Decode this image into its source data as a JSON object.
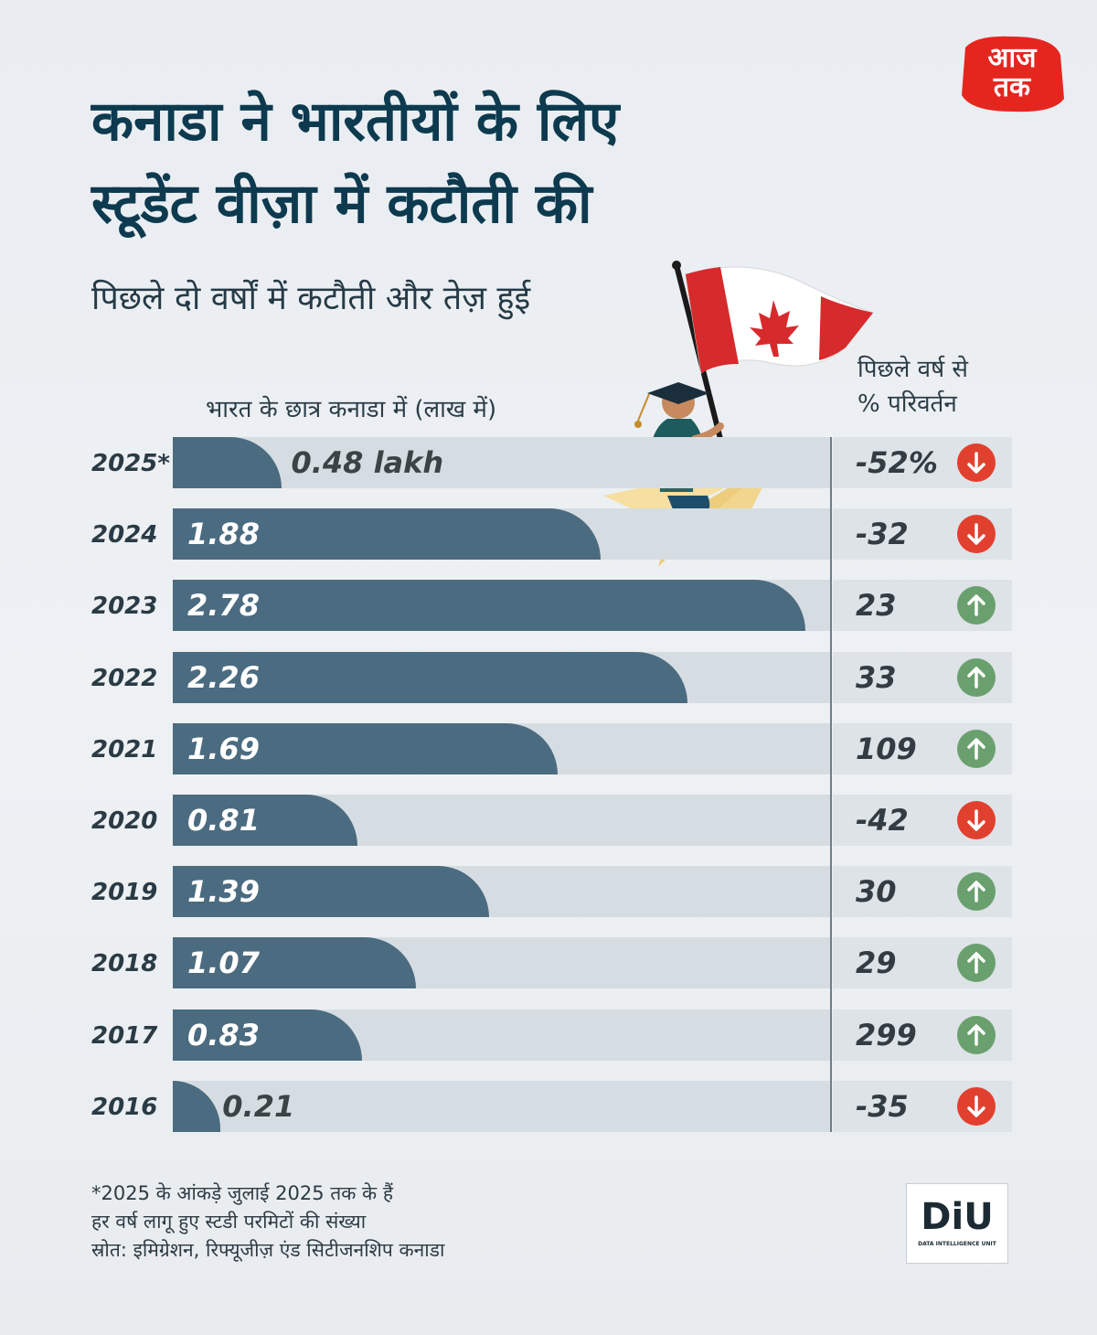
{
  "title_line1": "कनाडा ने भारतीयों के लिए",
  "title_line2": "स्टूडेंट वीज़ा में कटौती की",
  "subtitle": "पिछले दो वर्षों में कटौती और तेज़ हुई",
  "logo": {
    "line1": "आज",
    "line2": "तक",
    "color": "#e5261f"
  },
  "colors": {
    "bar": "#4b6b80",
    "track": "#d6dde2",
    "up": "#6aa06e",
    "down": "#e2402f"
  },
  "chart_data": {
    "type": "bar",
    "orientation": "horizontal",
    "xlabel": "भारत के छात्र कनाडा में (लाख में)",
    "change_header_line1": "पिछले वर्ष से",
    "change_header_line2": "% परिवर्तन",
    "xlim": [
      0,
      2.78
    ],
    "rows": [
      {
        "year": "2025*",
        "value": 0.48,
        "label": "0.48 lakh",
        "change": -52,
        "change_label": "-52%"
      },
      {
        "year": "2024",
        "value": 1.88,
        "label": "1.88",
        "change": -32,
        "change_label": "-32"
      },
      {
        "year": "2023",
        "value": 2.78,
        "label": "2.78",
        "change": 23,
        "change_label": "23"
      },
      {
        "year": "2022",
        "value": 2.26,
        "label": "2.26",
        "change": 33,
        "change_label": "33"
      },
      {
        "year": "2021",
        "value": 1.69,
        "label": "1.69",
        "change": 109,
        "change_label": "109"
      },
      {
        "year": "2020",
        "value": 0.81,
        "label": "0.81",
        "change": -42,
        "change_label": "-42"
      },
      {
        "year": "2019",
        "value": 1.39,
        "label": "1.39",
        "change": 30,
        "change_label": "30"
      },
      {
        "year": "2018",
        "value": 1.07,
        "label": "1.07",
        "change": 29,
        "change_label": "29"
      },
      {
        "year": "2017",
        "value": 0.83,
        "label": "0.83",
        "change": 299,
        "change_label": "299"
      },
      {
        "year": "2016",
        "value": 0.21,
        "label": "0.21",
        "change": -35,
        "change_label": "-35"
      }
    ]
  },
  "notes": {
    "line1": "*2025 के आंकड़े जुलाई 2025 तक के हैं",
    "line2": "हर वर्ष लागू हुए स्टडी परमिटों की संख्या",
    "line3": "स्रोत: इमिग्रेशन, रिफ्यूजीज़ एंड सिटीजनशिप कनाडा"
  },
  "diu": {
    "mark": "DiU",
    "sub": "DATA INTELLIGENCE UNIT"
  }
}
